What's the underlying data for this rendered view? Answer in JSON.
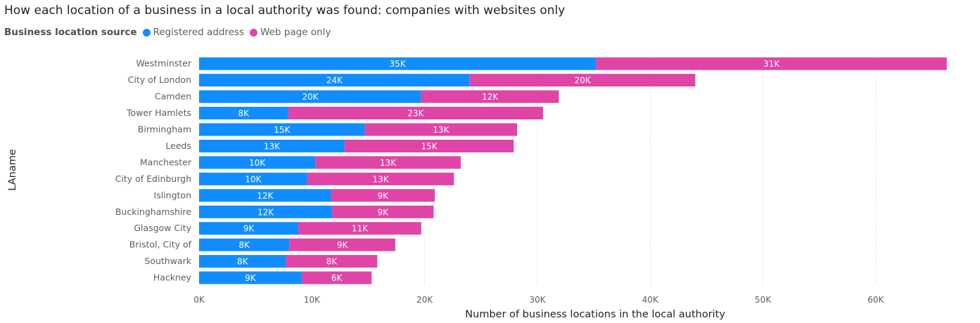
{
  "title": "How each location of a business in a local authority was found: companies with websites only",
  "legend": {
    "title": "Business location source",
    "items": [
      {
        "label": "Registered address",
        "color": "#118DFF"
      },
      {
        "label": "Web page only",
        "color": "#E044A7"
      }
    ]
  },
  "chart_data": {
    "type": "bar",
    "orientation": "horizontal",
    "stacked": true,
    "title": "How each location of a business in a local authority was found: companies with websites only",
    "xlabel": "Number of business locations in the local authority",
    "ylabel": "LAname",
    "xlim": [
      0,
      67000
    ],
    "xticks": [
      0,
      10000,
      20000,
      30000,
      40000,
      50000,
      60000
    ],
    "xtick_labels": [
      "0K",
      "10K",
      "20K",
      "30K",
      "40K",
      "50K",
      "60K"
    ],
    "grid": true,
    "legend_position": "top-left",
    "categories": [
      "Westminster",
      "City of London",
      "Camden",
      "Tower Hamlets",
      "Birmingham",
      "Leeds",
      "Manchester",
      "City of Edinburgh",
      "Islington",
      "Buckinghamshire",
      "Glasgow City",
      "Bristol, City of",
      "Southwark",
      "Hackney"
    ],
    "series": [
      {
        "name": "Registered address",
        "color": "#118DFF",
        "values": [
          35200,
          24000,
          19700,
          7900,
          14700,
          12900,
          10300,
          9600,
          11700,
          11800,
          8800,
          8000,
          7700,
          9100
        ],
        "labels": [
          "35K",
          "24K",
          "20K",
          "8K",
          "15K",
          "13K",
          "10K",
          "10K",
          "12K",
          "12K",
          "9K",
          "8K",
          "8K",
          "9K"
        ]
      },
      {
        "name": "Web page only",
        "color": "#E044A7",
        "values": [
          31100,
          20000,
          12200,
          22600,
          13500,
          15000,
          12900,
          13000,
          9200,
          9000,
          10900,
          9400,
          8100,
          6200
        ],
        "labels": [
          "31K",
          "20K",
          "12K",
          "23K",
          "13K",
          "15K",
          "13K",
          "13K",
          "9K",
          "9K",
          "11K",
          "9K",
          "8K",
          "6K"
        ]
      }
    ]
  }
}
